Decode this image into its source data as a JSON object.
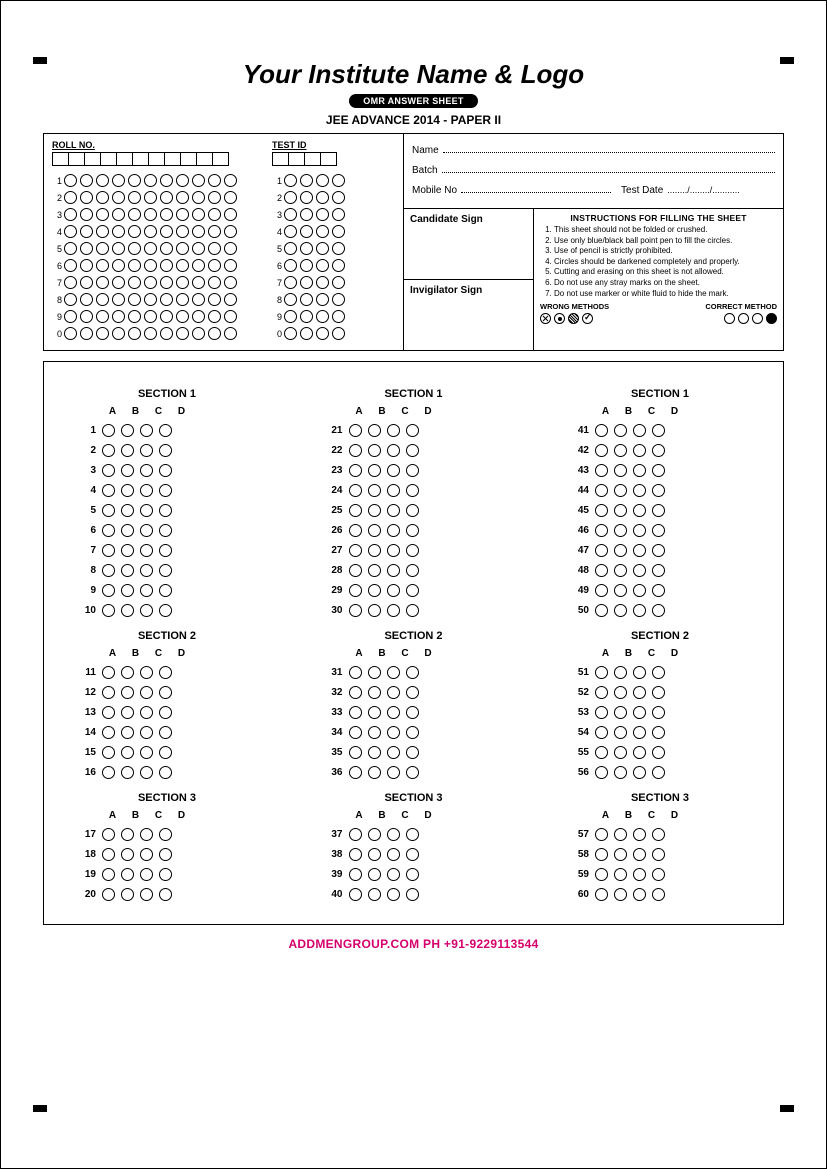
{
  "header": {
    "institute": "Your Institute Name & Logo",
    "pill": "OMR ANSWER SHEET",
    "exam": "JEE ADVANCE 2014 - PAPER II"
  },
  "labels": {
    "roll": "ROLL NO.",
    "test": "TEST ID",
    "name": "Name",
    "batch": "Batch",
    "mobile": "Mobile No",
    "testdate": "Test Date",
    "testdate_placeholder": "......../......../...........",
    "cand_sign": "Candidate Sign",
    "inv_sign": "Invigilator Sign"
  },
  "roll_cols": 11,
  "test_cols": 4,
  "digit_rows": [
    1,
    2,
    3,
    4,
    5,
    6,
    7,
    8,
    9,
    0
  ],
  "instructions": {
    "title": "INSTRUCTIONS FOR FILLING THE SHEET",
    "items": [
      "This sheet should not be folded or crushed.",
      "Use only blue/black ball point pen to fill the circles.",
      "Use of pencil is strictly prohibited.",
      "Circles should be darkened completely and properly.",
      "Cutting and erasing on this sheet is not allowed.",
      "Do not use any stray marks on the sheet.",
      "Do not use marker or white fluid to hide the mark."
    ],
    "wrong": "WRONG METHODS",
    "correct": "CORRECT METHOD"
  },
  "options": [
    "A",
    "B",
    "C",
    "D"
  ],
  "columns": [
    {
      "sections": [
        {
          "title": "SECTION 1",
          "q": [
            1,
            2,
            3,
            4,
            5,
            6,
            7,
            8,
            9,
            10
          ]
        },
        {
          "title": "SECTION 2",
          "q": [
            11,
            12,
            13,
            14,
            15,
            16
          ]
        },
        {
          "title": "SECTION 3",
          "q": [
            17,
            18,
            19,
            20
          ]
        }
      ]
    },
    {
      "sections": [
        {
          "title": "SECTION 1",
          "q": [
            21,
            22,
            23,
            24,
            25,
            26,
            27,
            28,
            29,
            30
          ]
        },
        {
          "title": "SECTION 2",
          "q": [
            31,
            32,
            33,
            34,
            35,
            36
          ]
        },
        {
          "title": "SECTION 3",
          "q": [
            37,
            38,
            39,
            40
          ]
        }
      ]
    },
    {
      "sections": [
        {
          "title": "SECTION 1",
          "q": [
            41,
            42,
            43,
            44,
            45,
            46,
            47,
            48,
            49,
            50
          ]
        },
        {
          "title": "SECTION 2",
          "q": [
            51,
            52,
            53,
            54,
            55,
            56
          ]
        },
        {
          "title": "SECTION 3",
          "q": [
            57,
            58,
            59,
            60
          ]
        }
      ]
    }
  ],
  "footer": "ADDMENGROUP.COM   PH +91-9229113544",
  "colors": {
    "footer": "#d6006c",
    "ink": "#000000",
    "paper": "#ffffff"
  }
}
